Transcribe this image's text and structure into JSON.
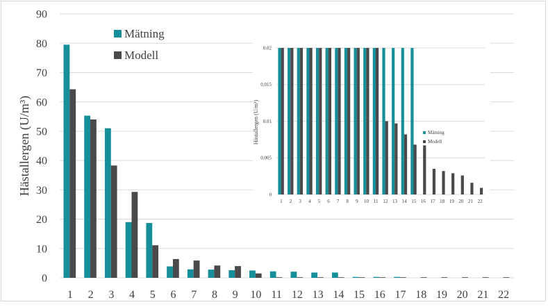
{
  "chart_data": [
    {
      "type": "bar",
      "ylabel": "Hästallergen (U/m³)",
      "ylim": [
        0,
        90
      ],
      "yticks": [
        0,
        10,
        20,
        30,
        40,
        50,
        60,
        70,
        80,
        90
      ],
      "grid": true,
      "legend_position": "top-left",
      "categories": [
        "1",
        "2",
        "3",
        "4",
        "5",
        "6",
        "7",
        "8",
        "9",
        "10",
        "11",
        "12",
        "13",
        "14",
        "15",
        "16",
        "17",
        "18",
        "19",
        "20",
        "21",
        "22"
      ],
      "series": [
        {
          "name": "Mätning",
          "color": "#168f9a",
          "values": [
            79.5,
            55.3,
            51,
            19,
            18.7,
            3.9,
            2.9,
            2.8,
            2.6,
            2.5,
            2.2,
            2.1,
            1.8,
            1.8,
            0.3,
            0.3,
            0.3,
            0,
            0,
            0,
            0,
            0
          ]
        },
        {
          "name": "Modell",
          "color": "#4a4a4d",
          "values": [
            64.3,
            54,
            38.3,
            29.3,
            11.1,
            6.4,
            5.9,
            4.2,
            4,
            1.5,
            0.2,
            0.2,
            0.2,
            0.2,
            0.2,
            0.2,
            0.2,
            0.2,
            0.2,
            0.2,
            0.2,
            0.2
          ]
        }
      ]
    },
    {
      "type": "bar",
      "ylabel": "Hästallergen (U/m³)",
      "ylim": [
        0,
        0.02
      ],
      "yticks": [
        "0",
        "0.005",
        "0.01",
        "0.015",
        "0.02"
      ],
      "grid": true,
      "legend_position": "right",
      "categories": [
        "1",
        "2",
        "3",
        "4",
        "5",
        "6",
        "7",
        "8",
        "9",
        "10",
        "11",
        "12",
        "13",
        "14",
        "15",
        "16",
        "17",
        "18",
        "19",
        "20",
        "21",
        "22"
      ],
      "series": [
        {
          "name": "Mätning",
          "color": "#168f9a",
          "values": [
            0.02,
            0.02,
            0.02,
            0.02,
            0.02,
            0.02,
            0.02,
            0.02,
            0.02,
            0.02,
            0.02,
            0.02,
            0.02,
            0.02,
            0.02,
            0,
            0,
            0,
            0,
            0,
            0,
            0
          ]
        },
        {
          "name": "Modell",
          "color": "#4a4a4d",
          "values": [
            0.02,
            0.02,
            0.02,
            0.02,
            0.02,
            0.02,
            0.02,
            0.02,
            0.02,
            0.02,
            0.02,
            0.01,
            0.0097,
            0.0082,
            0.0068,
            0.0067,
            0.0035,
            0.0032,
            0.0029,
            0.0026,
            0.0016,
            0.0009
          ]
        }
      ]
    }
  ]
}
